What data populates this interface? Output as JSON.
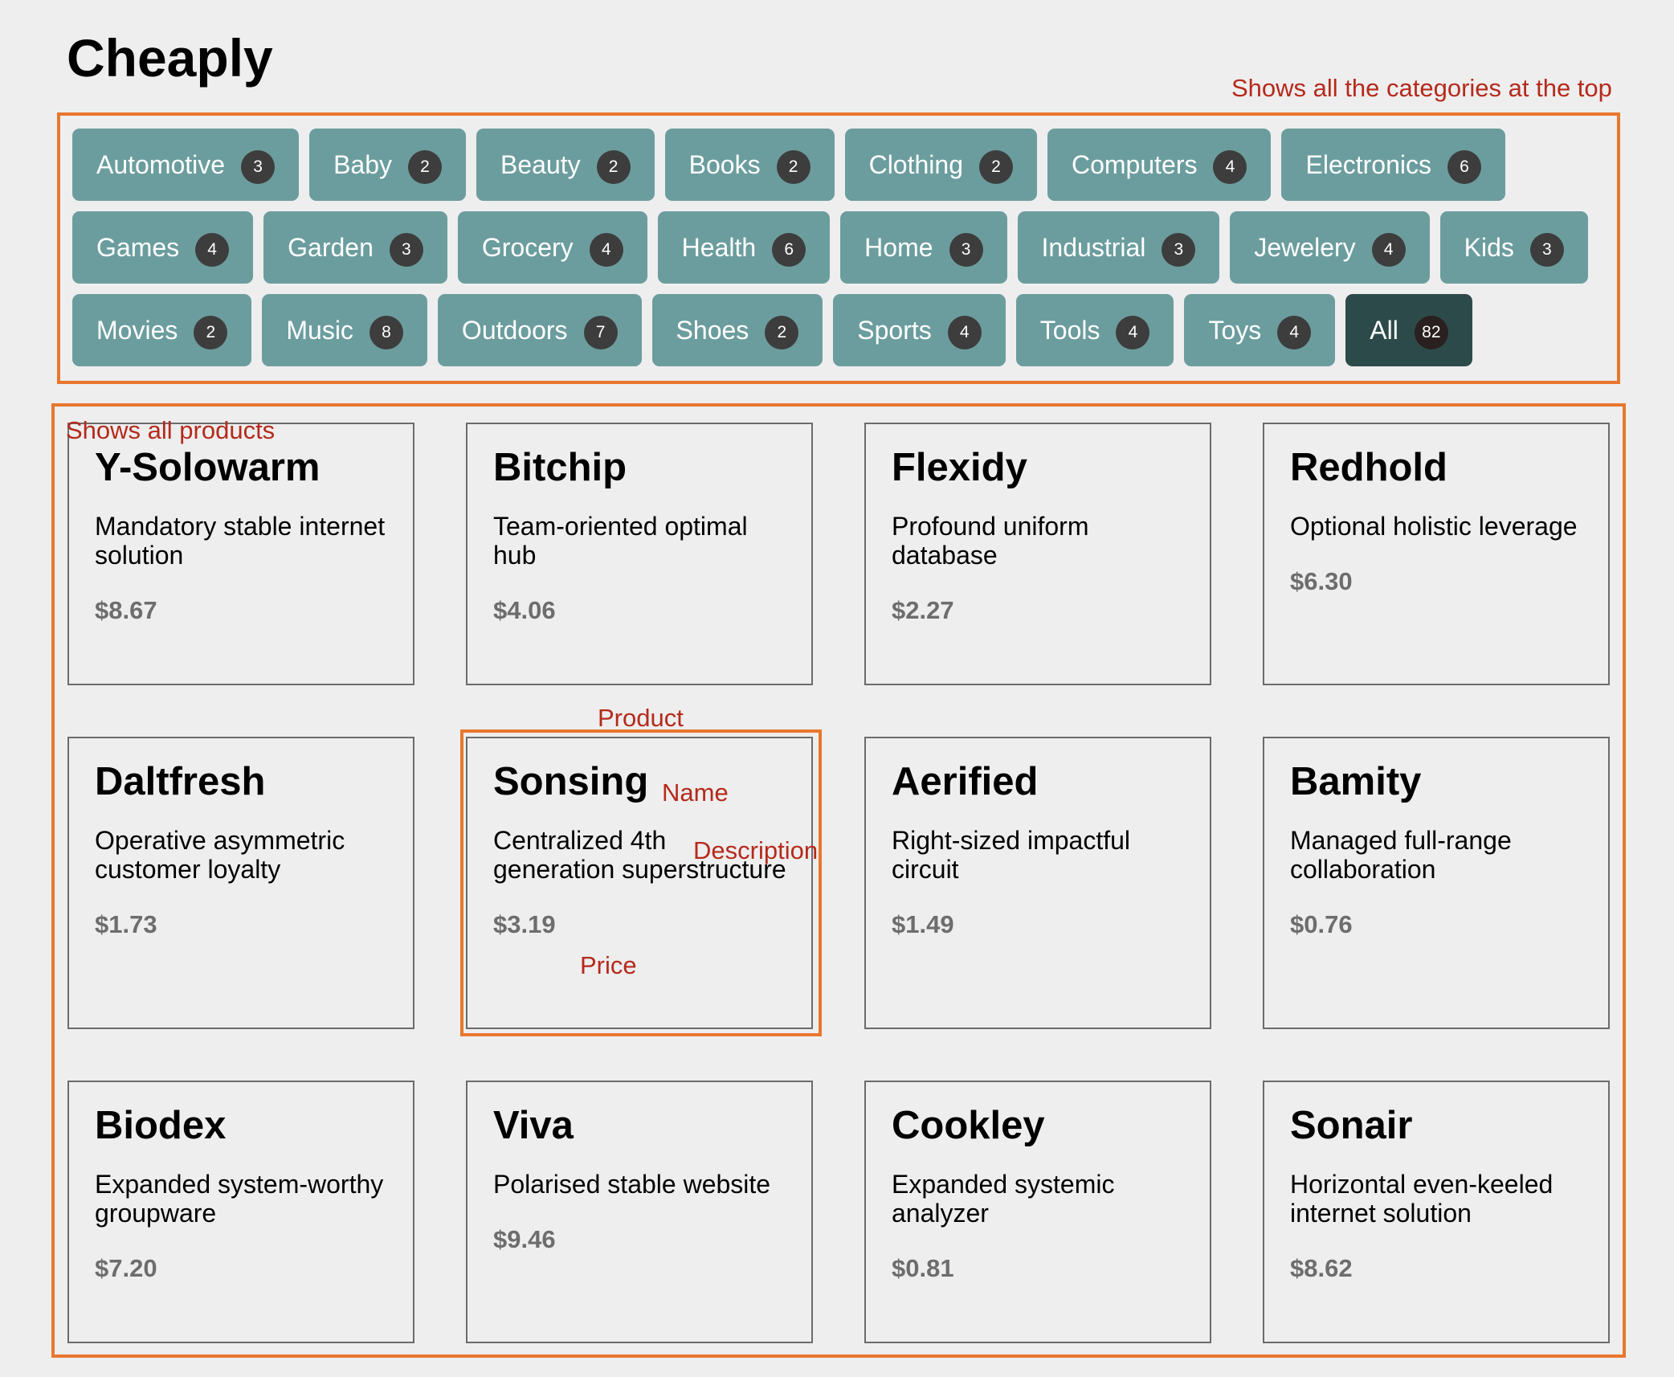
{
  "app": {
    "title": "Cheaply"
  },
  "annotations": {
    "categories_note": "Shows all the categories at the top",
    "products_note": "Shows all products",
    "product": "Product",
    "name": "Name",
    "description": "Description",
    "price": "Price"
  },
  "categories": [
    {
      "label": "Automotive",
      "count": "3"
    },
    {
      "label": "Baby",
      "count": "2"
    },
    {
      "label": "Beauty",
      "count": "2"
    },
    {
      "label": "Books",
      "count": "2"
    },
    {
      "label": "Clothing",
      "count": "2"
    },
    {
      "label": "Computers",
      "count": "4"
    },
    {
      "label": "Electronics",
      "count": "6"
    },
    {
      "label": "Games",
      "count": "4"
    },
    {
      "label": "Garden",
      "count": "3"
    },
    {
      "label": "Grocery",
      "count": "4"
    },
    {
      "label": "Health",
      "count": "6"
    },
    {
      "label": "Home",
      "count": "3"
    },
    {
      "label": "Industrial",
      "count": "3"
    },
    {
      "label": "Jewelery",
      "count": "4"
    },
    {
      "label": "Kids",
      "count": "3"
    },
    {
      "label": "Movies",
      "count": "2"
    },
    {
      "label": "Music",
      "count": "8"
    },
    {
      "label": "Outdoors",
      "count": "7"
    },
    {
      "label": "Shoes",
      "count": "2"
    },
    {
      "label": "Sports",
      "count": "4"
    },
    {
      "label": "Tools",
      "count": "4"
    },
    {
      "label": "Toys",
      "count": "4"
    },
    {
      "label": "All",
      "count": "82"
    }
  ],
  "selected_category": "All",
  "products": [
    {
      "name": "Y-Solowarm",
      "description": "Mandatory stable internet solution",
      "price": "$8.67"
    },
    {
      "name": "Bitchip",
      "description": "Team-oriented optimal hub",
      "price": "$4.06"
    },
    {
      "name": "Flexidy",
      "description": "Profound uniform database",
      "price": "$2.27"
    },
    {
      "name": "Redhold",
      "description": "Optional holistic leverage",
      "price": "$6.30"
    },
    {
      "name": "Daltfresh",
      "description": "Operative asymmetric customer loyalty",
      "price": "$1.73"
    },
    {
      "name": "Sonsing",
      "description": "Centralized 4th generation superstructure",
      "price": "$3.19"
    },
    {
      "name": "Aerified",
      "description": "Right-sized impactful circuit",
      "price": "$1.49"
    },
    {
      "name": "Bamity",
      "description": "Managed full-range collaboration",
      "price": "$0.76"
    },
    {
      "name": "Biodex",
      "description": "Expanded system-worthy groupware",
      "price": "$7.20"
    },
    {
      "name": "Viva",
      "description": "Polarised stable website",
      "price": "$9.46"
    },
    {
      "name": "Cookley",
      "description": "Expanded systemic analyzer",
      "price": "$0.81"
    },
    {
      "name": "Sonair",
      "description": "Horizontal even-keeled internet solution",
      "price": "$8.62"
    }
  ],
  "colors": {
    "category_bg": "#6c9d9e",
    "category_active_bg": "#2d4a4a",
    "annotation": "#b52a1c",
    "annotation_box": "#e8772e"
  }
}
